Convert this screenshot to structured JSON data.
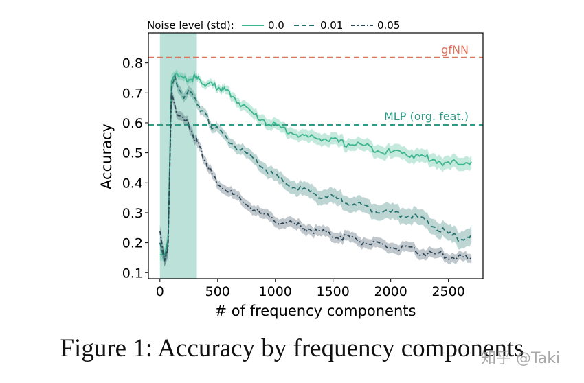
{
  "caption": "Figure 1: Accuracy by frequency components",
  "watermark": "知乎 @Taki",
  "colors": {
    "c0": "#3db58f",
    "c001": "#26736e",
    "c005": "#2f4858",
    "gfnn": "#e0715a",
    "mlp": "#2e9a87",
    "highlight": "#9fd4c8"
  },
  "chart_data": {
    "type": "line",
    "title": "",
    "xlabel": "# of frequency components",
    "ylabel": "Accuracy",
    "xlim": [
      -100,
      2800
    ],
    "ylim": [
      0.08,
      0.9
    ],
    "xticks": [
      0,
      500,
      1000,
      1500,
      2000,
      2500
    ],
    "xtick_labels": [
      "0",
      "500",
      "1000",
      "1500",
      "2000",
      "2500"
    ],
    "yticks": [
      0.1,
      0.2,
      0.3,
      0.4,
      0.5,
      0.6,
      0.7,
      0.8
    ],
    "ytick_labels": [
      "0.1",
      "0.2",
      "0.3",
      "0.4",
      "0.5",
      "0.6",
      "0.7",
      "0.8"
    ],
    "highlight_region": [
      0,
      320
    ],
    "legend": {
      "title": "Noise level (std):",
      "position": "top",
      "entries": [
        "0.0",
        "0.01",
        "0.05"
      ]
    },
    "reference_lines": [
      {
        "name": "gfNN",
        "y": 0.818
      },
      {
        "name": "MLP (org. feat.)",
        "y": 0.593
      }
    ],
    "series": [
      {
        "name": "0.0",
        "style": "solid",
        "x": [
          0,
          40,
          70,
          100,
          130,
          160,
          200,
          250,
          300,
          350,
          400,
          450,
          500,
          550,
          600,
          700,
          800,
          900,
          1000,
          1100,
          1200,
          1300,
          1400,
          1500,
          1600,
          1700,
          1800,
          1900,
          2000,
          2100,
          2200,
          2300,
          2400,
          2500,
          2600,
          2700
        ],
        "y": [
          0.16,
          0.16,
          0.21,
          0.74,
          0.765,
          0.755,
          0.745,
          0.745,
          0.75,
          0.74,
          0.73,
          0.725,
          0.72,
          0.71,
          0.7,
          0.665,
          0.63,
          0.61,
          0.59,
          0.575,
          0.56,
          0.55,
          0.55,
          0.54,
          0.53,
          0.53,
          0.52,
          0.51,
          0.5,
          0.505,
          0.49,
          0.485,
          0.475,
          0.46,
          0.47,
          0.47
        ],
        "band": [
          0.02,
          0.02,
          0.03,
          0.02,
          0.012,
          0.012,
          0.012,
          0.012,
          0.012,
          0.012,
          0.012,
          0.012,
          0.012,
          0.014,
          0.015,
          0.016,
          0.018,
          0.018,
          0.018,
          0.018,
          0.018,
          0.02,
          0.02,
          0.02,
          0.02,
          0.02,
          0.02,
          0.022,
          0.022,
          0.022,
          0.022,
          0.022,
          0.022,
          0.022,
          0.022,
          0.022
        ]
      },
      {
        "name": "0.01",
        "style": "dashed",
        "x": [
          0,
          40,
          70,
          100,
          130,
          160,
          200,
          250,
          300,
          350,
          400,
          450,
          500,
          600,
          700,
          800,
          900,
          1000,
          1100,
          1200,
          1300,
          1400,
          1500,
          1600,
          1700,
          1800,
          1900,
          2000,
          2100,
          2200,
          2300,
          2400,
          2500,
          2600,
          2700
        ],
        "y": [
          0.2,
          0.14,
          0.19,
          0.72,
          0.75,
          0.72,
          0.69,
          0.7,
          0.69,
          0.65,
          0.62,
          0.59,
          0.575,
          0.54,
          0.51,
          0.48,
          0.45,
          0.42,
          0.395,
          0.38,
          0.37,
          0.355,
          0.35,
          0.34,
          0.33,
          0.315,
          0.31,
          0.3,
          0.295,
          0.29,
          0.27,
          0.25,
          0.23,
          0.21,
          0.23
        ],
        "band": [
          0.02,
          0.02,
          0.03,
          0.02,
          0.015,
          0.015,
          0.015,
          0.015,
          0.015,
          0.015,
          0.015,
          0.015,
          0.015,
          0.016,
          0.017,
          0.018,
          0.02,
          0.02,
          0.022,
          0.022,
          0.024,
          0.024,
          0.025,
          0.025,
          0.025,
          0.025,
          0.026,
          0.026,
          0.026,
          0.026,
          0.026,
          0.026,
          0.026,
          0.028,
          0.03
        ]
      },
      {
        "name": "0.05",
        "style": "dashdot",
        "x": [
          0,
          40,
          70,
          100,
          130,
          160,
          200,
          250,
          300,
          350,
          400,
          450,
          500,
          600,
          700,
          800,
          900,
          1000,
          1100,
          1200,
          1300,
          1400,
          1500,
          1600,
          1700,
          1800,
          1900,
          2000,
          2100,
          2200,
          2300,
          2400,
          2500,
          2600,
          2700
        ],
        "y": [
          0.24,
          0.14,
          0.18,
          0.7,
          0.66,
          0.62,
          0.61,
          0.6,
          0.55,
          0.51,
          0.47,
          0.43,
          0.4,
          0.37,
          0.34,
          0.315,
          0.29,
          0.275,
          0.265,
          0.255,
          0.245,
          0.235,
          0.225,
          0.22,
          0.21,
          0.2,
          0.19,
          0.185,
          0.18,
          0.175,
          0.165,
          0.16,
          0.155,
          0.15,
          0.145
        ],
        "band": [
          0.02,
          0.02,
          0.03,
          0.02,
          0.015,
          0.015,
          0.015,
          0.015,
          0.015,
          0.015,
          0.015,
          0.015,
          0.015,
          0.016,
          0.016,
          0.016,
          0.017,
          0.017,
          0.017,
          0.017,
          0.017,
          0.017,
          0.017,
          0.017,
          0.017,
          0.017,
          0.017,
          0.017,
          0.017,
          0.017,
          0.017,
          0.016,
          0.016,
          0.015,
          0.015
        ]
      }
    ]
  }
}
